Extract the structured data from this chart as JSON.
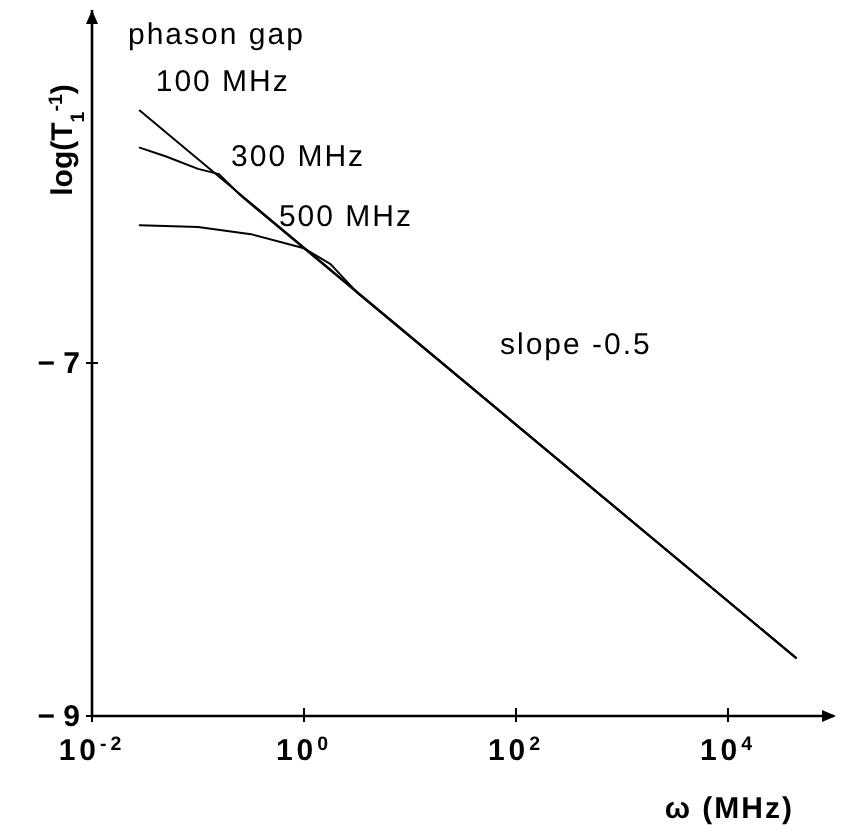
{
  "chart_data": {
    "type": "line",
    "xlabel": "ω (MHz)",
    "ylabel": "log(T$_{1}$$^{-1}$)",
    "log": "x",
    "grid": false,
    "marker": "none",
    "line_style": "solid",
    "xlim": [
      0.01,
      100000
    ],
    "ylim": [
      -9,
      -5
    ],
    "xticks": [
      {
        "value": 0.01,
        "label": "10$^{-2}$"
      },
      {
        "value": 1,
        "label": "10$^{0}$"
      },
      {
        "value": 100,
        "label": "10$^{2}$"
      },
      {
        "value": 10000,
        "label": "10$^{4}$"
      }
    ],
    "yticks": [
      -7,
      -9
    ],
    "annotations": [
      "phason gap",
      "slope -0.5"
    ],
    "series": [
      {
        "name": "100 MHz",
        "color": "#000000",
        "x": [
          0.0282,
          43650
        ],
        "values": [
          -5.57,
          -8.67
        ]
      },
      {
        "name": "300 MHz",
        "color": "#000000",
        "x": [
          0.0282,
          0.0501,
          0.1,
          0.158,
          0.251,
          43650
        ],
        "values": [
          -5.78,
          -5.83,
          -5.9,
          -5.93,
          -6.05,
          -8.67
        ]
      },
      {
        "name": "500 MHz",
        "color": "#000000",
        "x": [
          0.0282,
          0.1,
          0.316,
          1,
          1.78,
          3.16,
          6.31,
          43650
        ],
        "values": [
          -6.22,
          -6.23,
          -6.27,
          -6.35,
          -6.44,
          -6.6,
          -6.75,
          -8.67
        ]
      }
    ]
  }
}
